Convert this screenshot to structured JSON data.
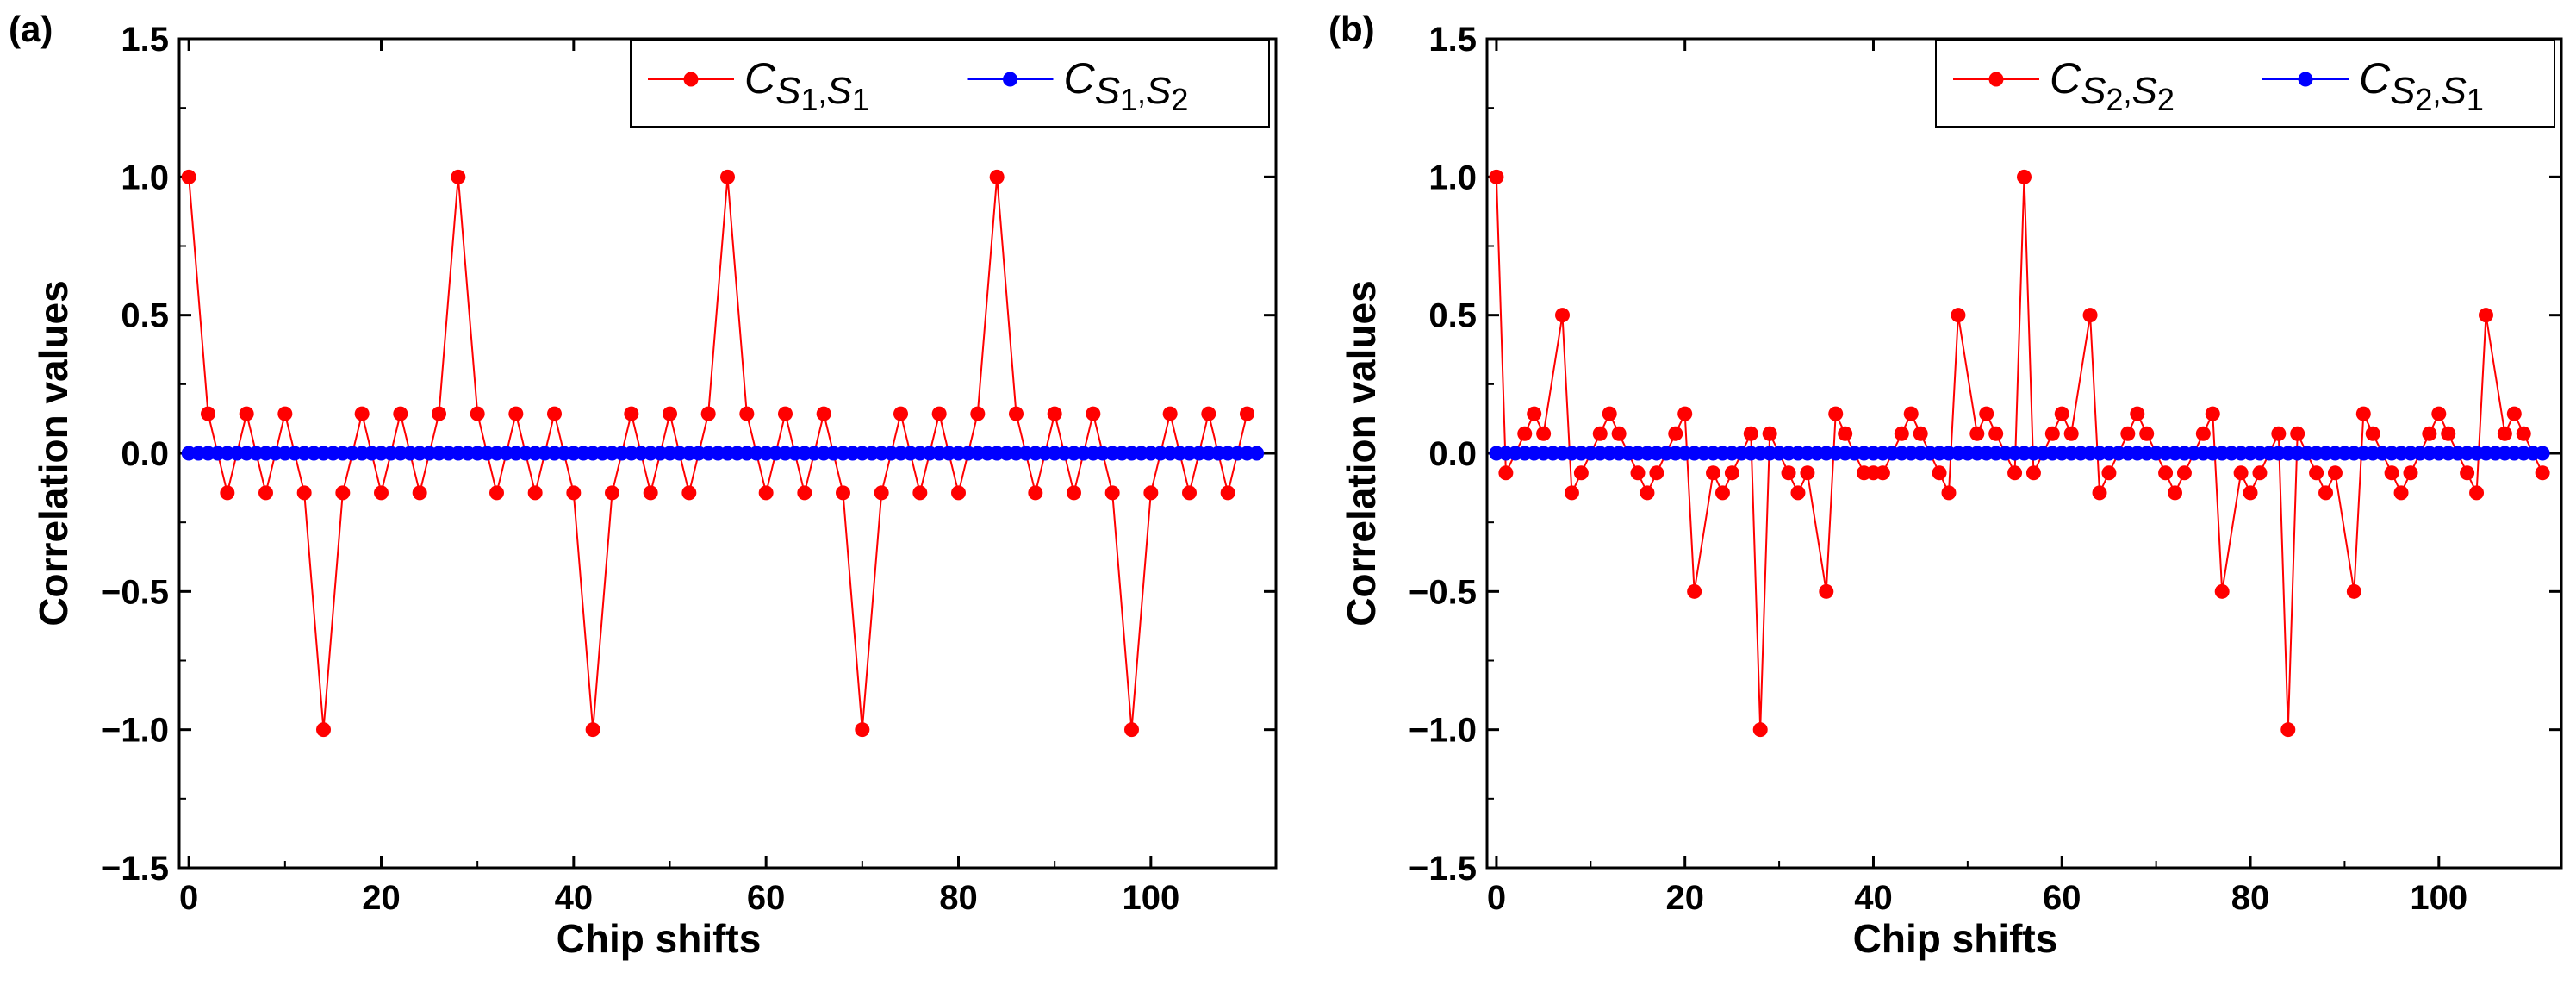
{
  "chart_data": [
    {
      "panel": "(a)",
      "type": "line",
      "xlabel": "Chip shifts",
      "ylabel": "Correlation values",
      "xlim": [
        -1,
        113
      ],
      "ylim": [
        -1.5,
        1.5
      ],
      "xticks": [
        0,
        20,
        40,
        60,
        80,
        100
      ],
      "yticks": [
        -1.5,
        -1.0,
        -0.5,
        0.0,
        0.5,
        1.0,
        1.5
      ],
      "ytick_labels": [
        "−1.5",
        "−1.0",
        "−0.5",
        "0.0",
        "0.5",
        "1.0",
        "1.5"
      ],
      "legend_position": "top-right",
      "series": [
        {
          "name": "C_{S1,S1}",
          "legend": {
            "main": "C",
            "sub1": "S",
            "sub2": "1",
            "comma": ",",
            "sub3": "S",
            "sub4": "1"
          },
          "color": "#ff0000",
          "x": [
            0,
            2,
            4,
            6,
            8,
            10,
            12,
            14,
            16,
            18,
            20,
            22,
            24,
            26,
            28,
            30,
            32,
            34,
            36,
            38,
            40,
            42,
            44,
            46,
            48,
            50,
            52,
            54,
            56,
            58,
            60,
            62,
            64,
            66,
            68,
            70,
            72,
            74,
            76,
            78,
            80,
            82,
            84,
            86,
            88,
            90,
            92,
            94,
            96,
            98,
            100,
            102,
            104,
            106,
            108,
            110
          ],
          "y": [
            1,
            0.143,
            -0.143,
            0.143,
            -0.143,
            0.143,
            -0.143,
            -1,
            -0.143,
            0.143,
            -0.143,
            0.143,
            -0.143,
            0.143,
            1,
            0.143,
            -0.143,
            0.143,
            -0.143,
            0.143,
            -0.143,
            -1,
            -0.143,
            0.143,
            -0.143,
            0.143,
            -0.143,
            0.143,
            1,
            0.143,
            -0.143,
            0.143,
            -0.143,
            0.143,
            -0.143,
            -1,
            -0.143,
            0.143,
            -0.143,
            0.143,
            -0.143,
            0.143,
            1,
            0.143,
            -0.143,
            0.143,
            -0.143,
            0.143,
            -0.143,
            -1,
            -0.143,
            0.143,
            -0.143,
            0.143,
            -0.143,
            0.143
          ]
        },
        {
          "name": "C_{S1,S2}",
          "legend": {
            "main": "C",
            "sub1": "S",
            "sub2": "1",
            "comma": ",",
            "sub3": "S",
            "sub4": "2"
          },
          "color": "#0000ff",
          "x_range": [
            0,
            111
          ],
          "constant": 0
        }
      ]
    },
    {
      "panel": "(b)",
      "type": "line",
      "xlabel": "Chip shifts",
      "ylabel": "Correlation values",
      "xlim": [
        -1,
        113
      ],
      "ylim": [
        -1.5,
        1.5
      ],
      "xticks": [
        0,
        20,
        40,
        60,
        80,
        100
      ],
      "yticks": [
        -1.5,
        -1.0,
        -0.5,
        0.0,
        0.5,
        1.0,
        1.5
      ],
      "ytick_labels": [
        "−1.5",
        "−1.0",
        "−0.5",
        "0.0",
        "0.5",
        "1.0",
        "1.5"
      ],
      "legend_position": "top-right",
      "series": [
        {
          "name": "C_{S2,S2}",
          "legend": {
            "main": "C",
            "sub1": "S",
            "sub2": "2",
            "comma": ",",
            "sub3": "S",
            "sub4": "2"
          },
          "color": "#ff0000",
          "x": [
            0,
            1,
            3,
            4,
            5,
            7,
            8,
            9,
            11,
            12,
            13,
            15,
            16,
            17,
            19,
            20,
            21,
            23,
            24,
            25,
            27,
            28,
            29,
            31,
            32,
            33,
            35,
            36,
            37,
            39,
            40,
            41,
            43,
            44,
            45,
            47,
            48,
            49,
            51,
            52,
            53,
            55,
            56,
            57,
            59,
            60,
            61,
            63,
            64,
            65,
            67,
            68,
            69,
            71,
            72,
            73,
            75,
            76,
            77,
            79,
            80,
            81,
            83,
            84,
            85,
            87,
            88,
            89,
            91,
            92,
            93,
            95,
            96,
            97,
            99,
            100,
            101,
            103,
            104,
            105,
            107,
            108,
            109,
            111
          ],
          "y": [
            1,
            -0.071,
            0.071,
            0.143,
            0.071,
            0.5,
            -0.143,
            -0.071,
            0.071,
            0.143,
            0.071,
            -0.071,
            -0.143,
            -0.071,
            0.071,
            0.143,
            -0.5,
            -0.071,
            -0.143,
            -0.071,
            0.071,
            -1,
            0.071,
            -0.071,
            -0.143,
            -0.071,
            -0.5,
            0.143,
            0.071,
            -0.071,
            -0.071,
            -0.071,
            0.071,
            0.143,
            0.071,
            -0.071,
            -0.143,
            0.5,
            0.071,
            0.143,
            0.071,
            -0.071,
            1,
            -0.071,
            0.071,
            0.143,
            0.071,
            0.5,
            -0.143,
            -0.071,
            0.071,
            0.143,
            0.071,
            -0.071,
            -0.143,
            -0.071,
            0.071,
            0.143,
            -0.5,
            -0.071,
            -0.143,
            -0.071,
            0.071,
            -1,
            0.071,
            -0.071,
            -0.143,
            -0.071,
            -0.5,
            0.143,
            0.071,
            -0.071,
            -0.143,
            -0.071,
            0.071,
            0.143,
            0.071,
            -0.071,
            -0.143,
            0.5,
            0.071,
            0.143,
            0.071,
            -0.071
          ]
        },
        {
          "name": "C_{S2,S1}",
          "legend": {
            "main": "C",
            "sub1": "S",
            "sub2": "2",
            "comma": ",",
            "sub3": "S",
            "sub4": "1"
          },
          "color": "#0000ff",
          "x_range": [
            0,
            111
          ],
          "constant": 0
        }
      ]
    }
  ]
}
